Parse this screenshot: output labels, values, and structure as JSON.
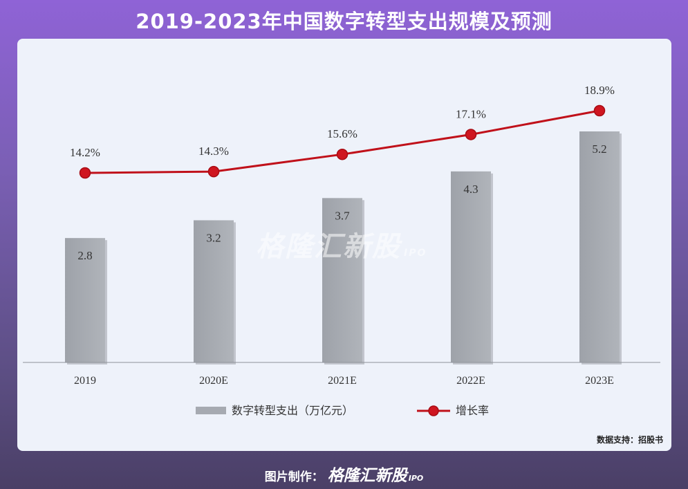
{
  "page_title": "2019-2023年中国数字转型支出规模及预测",
  "watermark": {
    "text": "格隆汇新股",
    "suffix": "IPO"
  },
  "source_note": "数据支持：招股书",
  "footer": {
    "label": "图片制作：",
    "brand": "格隆汇新股",
    "brand_suffix": "IPO"
  },
  "chart_data": {
    "type": "bar",
    "categories": [
      "2019",
      "2020E",
      "2021E",
      "2022E",
      "2023E"
    ],
    "series": [
      {
        "name": "数字转型支出（万亿元）",
        "type": "bar",
        "values": [
          2.8,
          3.2,
          3.7,
          4.3,
          5.2
        ],
        "labels": [
          "2.8",
          "3.2",
          "3.7",
          "4.3",
          "5.2"
        ],
        "color": "#a6aab1"
      },
      {
        "name": "增长率",
        "type": "line",
        "values": [
          14.2,
          14.3,
          15.6,
          17.1,
          18.9
        ],
        "labels": [
          "14.2%",
          "14.3%",
          "15.6%",
          "17.1%",
          "18.9%"
        ],
        "color": "#c0111a"
      }
    ],
    "legend": "bottom",
    "grid": false
  }
}
